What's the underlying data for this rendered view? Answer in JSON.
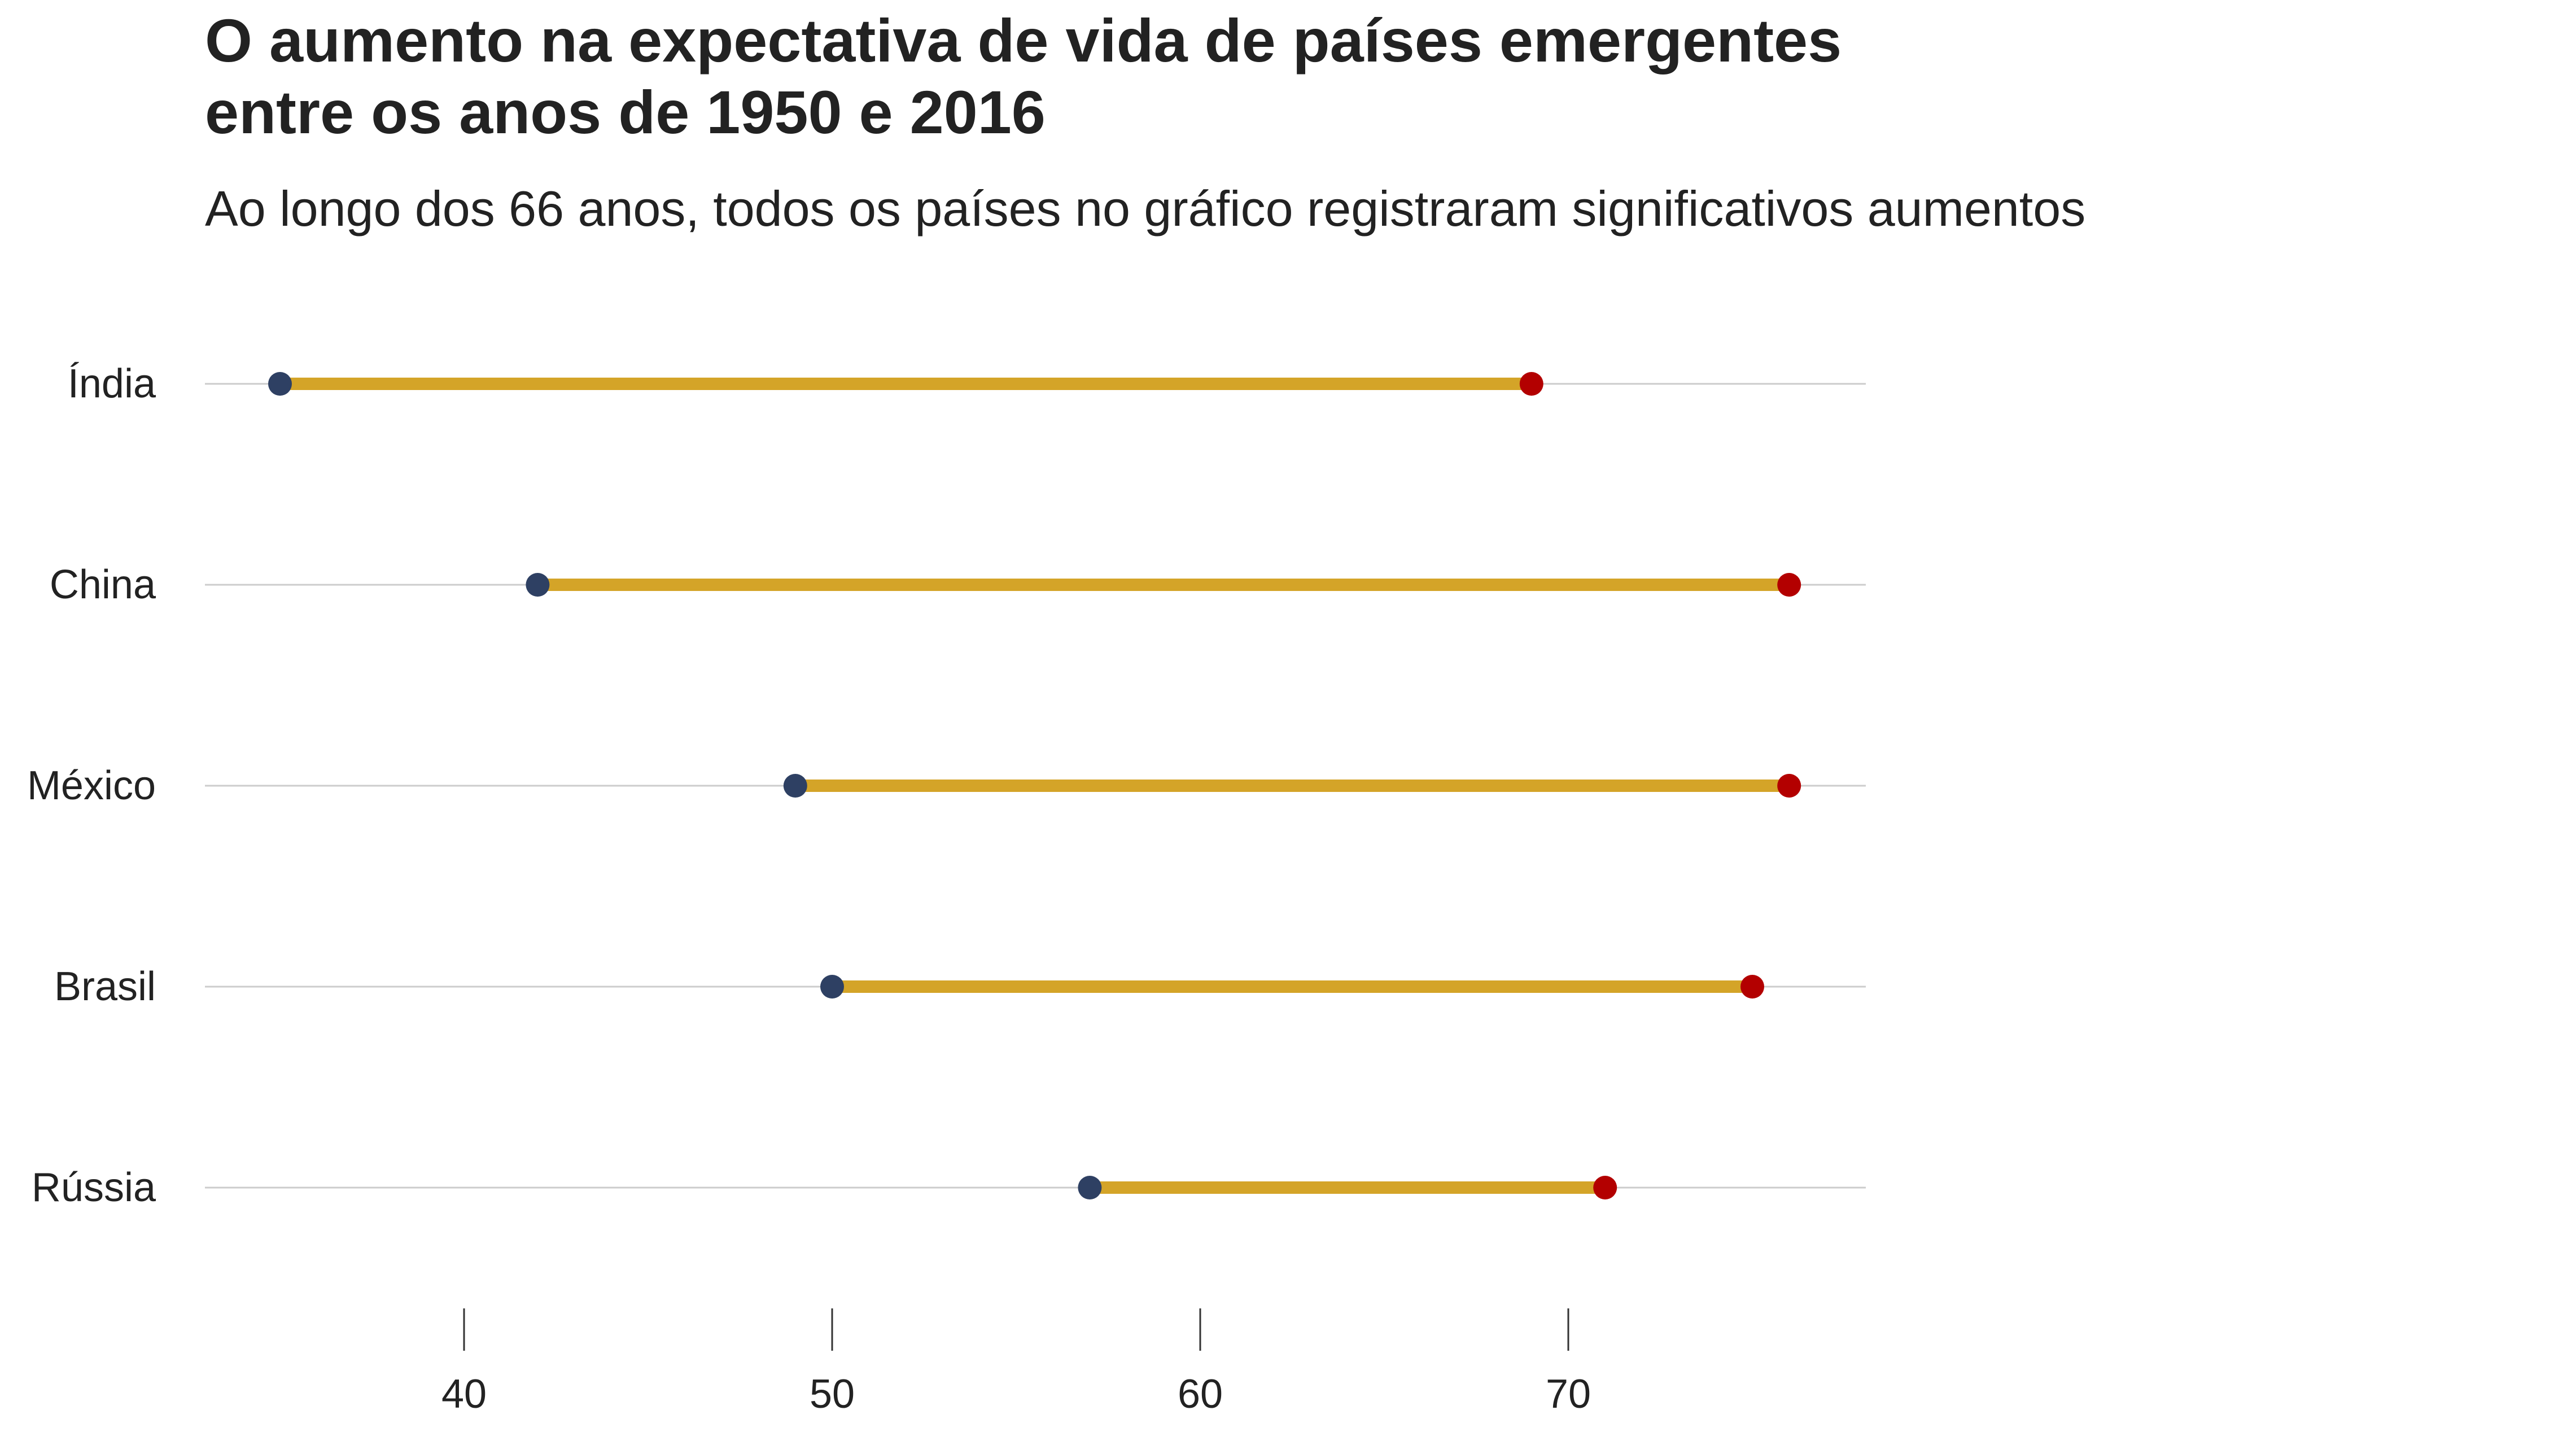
{
  "title_lines": [
    "O aumento na expectativa de vida de países emergentes",
    "entre os anos de 1950 e 2016"
  ],
  "subtitle": "Ao longo dos 66 anos, todos os países no gráfico registraram significativos aumentos",
  "colors": {
    "start_point": "#2e4063",
    "end_point": "#b30000",
    "segment": "#d4a428",
    "gridline": "#cccccc",
    "tick": "#333333",
    "text": "#222222"
  },
  "chart_data": {
    "type": "dumbbell",
    "title": "O aumento na expectativa de vida de países emergentes entre os anos de 1950 e 2016",
    "subtitle": "Ao longo dos 66 anos, todos os países no gráfico registraram significativos aumentos",
    "xlabel": "",
    "ylabel": "",
    "categories": [
      "Índia",
      "China",
      "México",
      "Brasil",
      "Rússia"
    ],
    "start_values": [
      35,
      42,
      49,
      50,
      57
    ],
    "end_values": [
      69,
      76,
      76,
      75,
      71
    ],
    "x_ticks": [
      40,
      50,
      60,
      70
    ],
    "xlim": [
      33,
      80
    ],
    "grid": "horizontal",
    "legend": "none"
  }
}
